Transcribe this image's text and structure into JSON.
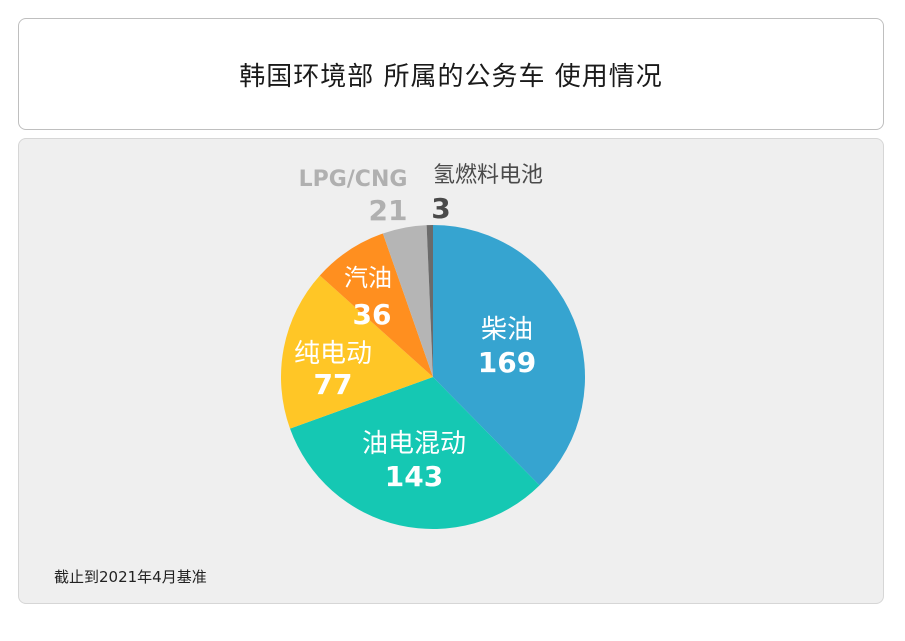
{
  "title": "韩国环境部 所属的公务车 使用情况",
  "footnote": "截止到2021年4月基准",
  "chart_data": {
    "type": "pie",
    "start_angle_deg": 0,
    "direction": "clockwise",
    "slices": [
      {
        "label": "柴油",
        "value": 169,
        "color": "#36a4d0",
        "text_color": "#ffffff"
      },
      {
        "label": "油电混动",
        "value": 143,
        "color": "#15c8b3",
        "text_color": "#ffffff"
      },
      {
        "label": "纯电动",
        "value": 77,
        "color": "#ffc626",
        "text_color": "#ffffff"
      },
      {
        "label": "汽油",
        "value": 36,
        "color": "#ff8f1f",
        "text_color": "#ffffff"
      },
      {
        "label": "LPG/CNG",
        "value": 21,
        "color": "#b5b5b5",
        "text_color": "#b0b0b0"
      },
      {
        "label": "氢燃料电池",
        "value": 3,
        "color": "#6b6b6b",
        "text_color": "#4a4a4a"
      }
    ]
  }
}
